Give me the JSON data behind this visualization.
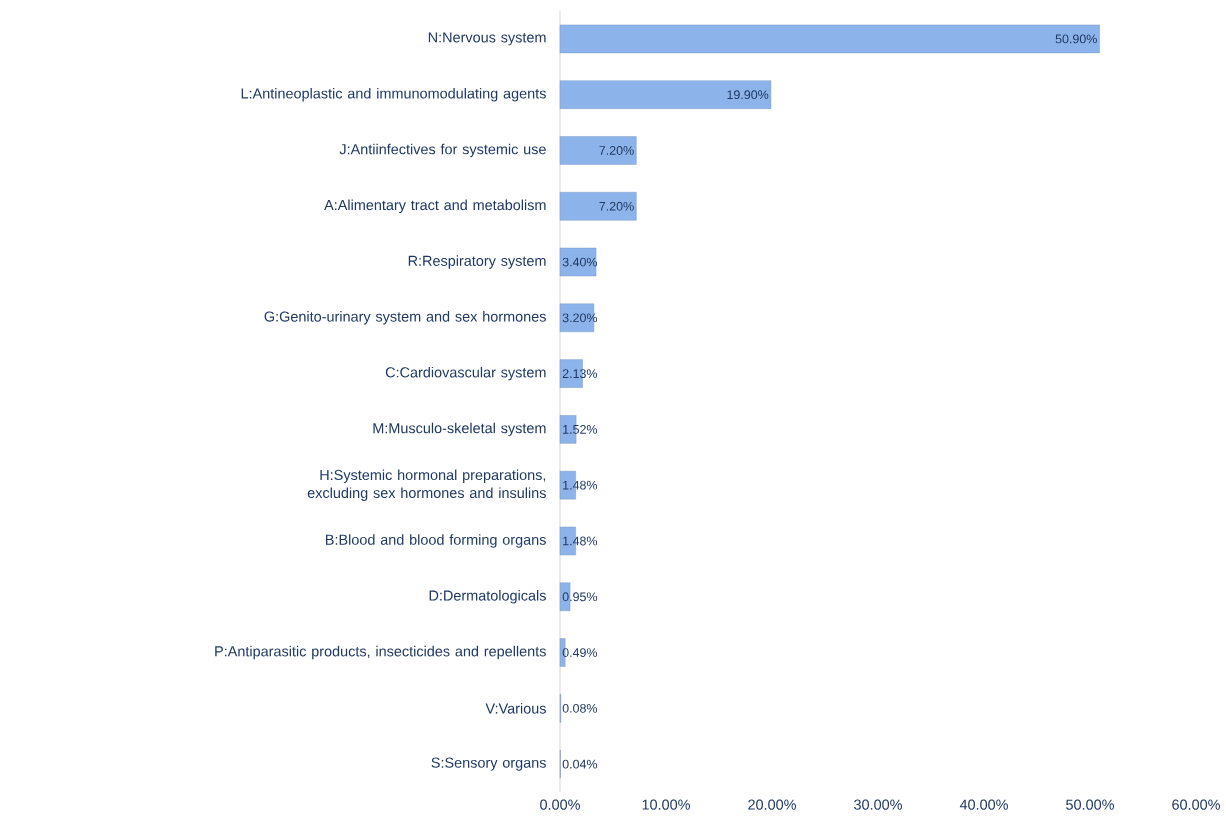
{
  "chart_data": {
    "type": "bar",
    "orientation": "horizontal",
    "color": "#8db4ea",
    "categories": [
      "N:Nervous system",
      "L:Antineoplastic and immunomodulating agents",
      "J:Antiinfectives for systemic use",
      "A:Alimentary tract and metabolism",
      "R:Respiratory system",
      "G:Genito-urinary system and sex hormones",
      "C:Cardiovascular system",
      "M:Musculo-skeletal system",
      "H:Systemic hormonal preparations, excluding sex hormones and insulins",
      "B:Blood and blood forming organs",
      "D:Dermatologicals",
      "P:Antiparasitic products, insecticides and repellents",
      "V:Various",
      "S:Sensory organs"
    ],
    "values": [
      50.9,
      19.9,
      7.2,
      7.2,
      3.4,
      3.2,
      2.13,
      1.52,
      1.48,
      1.48,
      0.95,
      0.49,
      0.08,
      0.04
    ],
    "value_labels": [
      "50.90%",
      "19.90%",
      "7.20%",
      "7.20%",
      "3.40%",
      "3.20%",
      "2.13%",
      "1.52%",
      "1.48%",
      "1.48%",
      "0.95%",
      "0.49%",
      "0.08%",
      "0.04%"
    ],
    "xlim": [
      0,
      60
    ],
    "xticks": [
      {
        "value": 0,
        "label": "0.00%"
      },
      {
        "value": 10,
        "label": "10.00%"
      },
      {
        "value": 20,
        "label": "20.00%"
      },
      {
        "value": 30,
        "label": "30.00%"
      },
      {
        "value": 40,
        "label": "40.00%"
      },
      {
        "value": 50,
        "label": "50.00%"
      },
      {
        "value": 60,
        "label": "60.00%"
      }
    ],
    "grid": false
  }
}
